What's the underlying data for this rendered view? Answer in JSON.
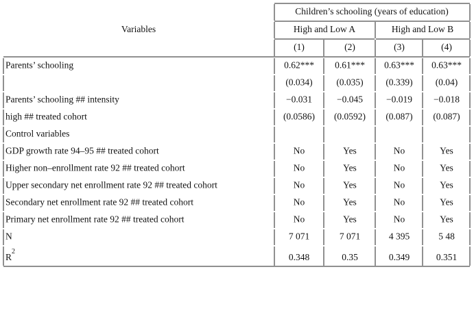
{
  "header": {
    "spanner": "Children’s schooling (years of education)",
    "row_label": "Variables",
    "groups": [
      "High and Low A",
      "High and Low B"
    ],
    "columns": [
      "(1)",
      "(2)",
      "(3)",
      "(4)"
    ]
  },
  "table": {
    "rows": [
      {
        "label": "Parents’ schooling",
        "cells": [
          "0.62***",
          "0.61***",
          "0.63***",
          "0.63***"
        ]
      },
      {
        "cells": [
          "(0.034)",
          "(0.035)",
          "(0.339)",
          "(0.04)"
        ]
      },
      {
        "label": "Parents’ schooling ## intensity",
        "cells": [
          "−0.031",
          "−0.045",
          "−0.019",
          "−0.018"
        ]
      },
      {
        "label": "high ## treated cohort",
        "cells": [
          "(0.0586)",
          "(0.0592)",
          "(0.087)",
          "(0.087)"
        ]
      },
      {
        "label": "Control variables"
      },
      {
        "label": "GDP growth rate 94–95 ## treated cohort",
        "cells": [
          "No",
          "Yes",
          "No",
          "Yes"
        ]
      },
      {
        "label": "Higher non–enrollment rate 92 ## treated cohort",
        "cells": [
          "No",
          "Yes",
          "No",
          "Yes"
        ]
      },
      {
        "label": "Upper secondary net enrollment rate 92 ## treated cohort",
        "cells": [
          "No",
          "Yes",
          "No",
          "Yes"
        ]
      },
      {
        "label": "Secondary net enrollment rate 92 ## treated cohort",
        "cells": [
          "No",
          "Yes",
          "No",
          "Yes"
        ]
      },
      {
        "label": "Primary net enrollment rate 92 ## treated cohort",
        "cells": [
          "No",
          "Yes",
          "No",
          "Yes"
        ]
      },
      {
        "label": "N",
        "cells": [
          "7 071",
          "7 071",
          "4 395",
          "5 48"
        ]
      },
      {
        "label": "R",
        "label_sup": "2",
        "cells": [
          "0.348",
          "0.35",
          "0.349",
          "0.351"
        ]
      }
    ]
  }
}
